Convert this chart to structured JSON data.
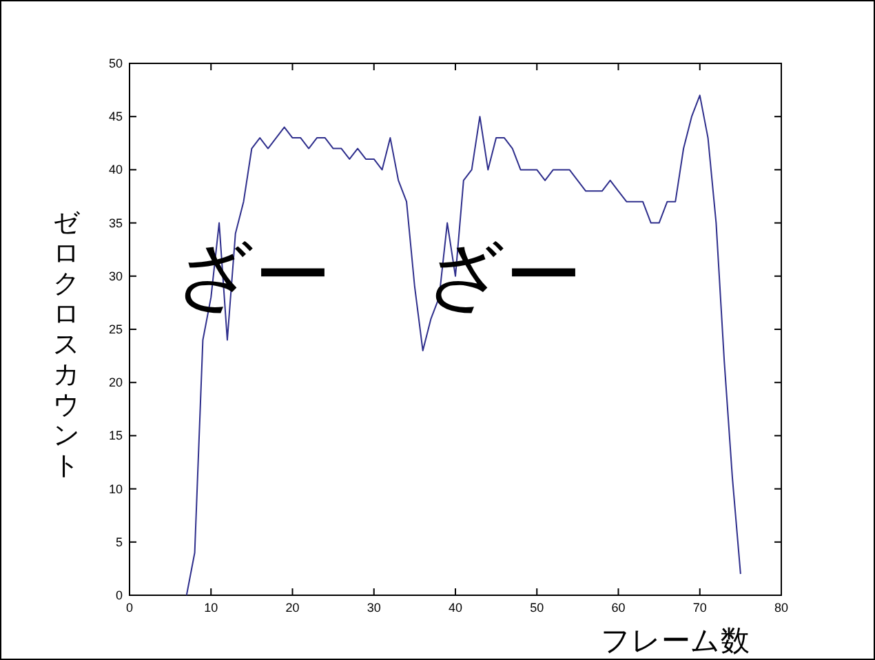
{
  "chart_data": {
    "type": "line",
    "xlabel": "フレーム数",
    "ylabel": "ゼロクロスカウント",
    "x": [
      7,
      8,
      9,
      10,
      11,
      12,
      13,
      14,
      15,
      16,
      17,
      18,
      19,
      20,
      21,
      22,
      23,
      24,
      25,
      26,
      27,
      28,
      29,
      30,
      31,
      32,
      33,
      34,
      35,
      36,
      37,
      38,
      39,
      40,
      41,
      42,
      43,
      44,
      45,
      46,
      47,
      48,
      49,
      50,
      51,
      52,
      53,
      54,
      55,
      56,
      57,
      58,
      59,
      60,
      61,
      62,
      63,
      64,
      65,
      66,
      67,
      68,
      69,
      70,
      71,
      72,
      73,
      74,
      75
    ],
    "series": [
      {
        "color": "#2e2e8c",
        "values": [
          0,
          4,
          24,
          28,
          35,
          24,
          34,
          37,
          42,
          43,
          42,
          43,
          44,
          43,
          43,
          42,
          43,
          43,
          42,
          42,
          41,
          42,
          41,
          41,
          40,
          43,
          39,
          37,
          29,
          23,
          26,
          28,
          35,
          30,
          39,
          40,
          45,
          40,
          43,
          43,
          42,
          40,
          40,
          40,
          39,
          40,
          40,
          40,
          39,
          38,
          38,
          38,
          39,
          38,
          37,
          37,
          37,
          35,
          35,
          37,
          37,
          42,
          45,
          47,
          43,
          35,
          22,
          11,
          2
        ]
      }
    ],
    "xlim": [
      0,
      80
    ],
    "xticks": [
      0,
      10,
      20,
      30,
      40,
      50,
      60,
      70,
      80
    ],
    "ylim": [
      0,
      50
    ],
    "yticks": [
      0,
      5,
      10,
      15,
      20,
      25,
      30,
      35,
      40,
      45,
      50
    ],
    "annotations": [
      "ざー",
      "ざー"
    ],
    "grid": false,
    "marker": "none",
    "line_style": "solid"
  }
}
